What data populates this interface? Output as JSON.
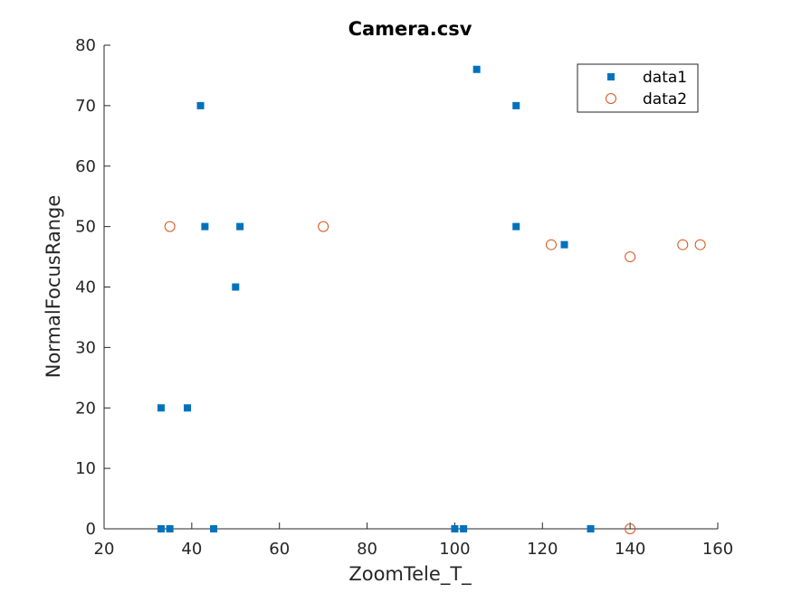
{
  "chart_data": {
    "type": "scatter",
    "title": "Camera.csv",
    "xlabel": "ZoomTele_T_",
    "ylabel": "NormalFocusRange",
    "xlim": [
      20,
      160
    ],
    "ylim": [
      0,
      80
    ],
    "xticks": [
      20,
      40,
      60,
      80,
      100,
      120,
      140,
      160
    ],
    "yticks": [
      0,
      10,
      20,
      30,
      40,
      50,
      60,
      70,
      80
    ],
    "grid": false,
    "legend_position": "top-right",
    "series": [
      {
        "name": "data1",
        "marker": "square",
        "color": "#0072BD",
        "points": [
          {
            "x": 33,
            "y": 0
          },
          {
            "x": 35,
            "y": 0
          },
          {
            "x": 45,
            "y": 0
          },
          {
            "x": 100,
            "y": 0
          },
          {
            "x": 102,
            "y": 0
          },
          {
            "x": 131,
            "y": 0
          },
          {
            "x": 33,
            "y": 20
          },
          {
            "x": 39,
            "y": 20
          },
          {
            "x": 50,
            "y": 40
          },
          {
            "x": 43,
            "y": 50
          },
          {
            "x": 51,
            "y": 50
          },
          {
            "x": 114,
            "y": 50
          },
          {
            "x": 125,
            "y": 47
          },
          {
            "x": 42,
            "y": 70
          },
          {
            "x": 114,
            "y": 70
          },
          {
            "x": 105,
            "y": 76
          }
        ]
      },
      {
        "name": "data2",
        "marker": "circle",
        "color": "#D95319",
        "points": [
          {
            "x": 35,
            "y": 50
          },
          {
            "x": 70,
            "y": 50
          },
          {
            "x": 122,
            "y": 47
          },
          {
            "x": 140,
            "y": 45
          },
          {
            "x": 152,
            "y": 47
          },
          {
            "x": 156,
            "y": 47
          },
          {
            "x": 140,
            "y": 0
          }
        ]
      }
    ]
  }
}
